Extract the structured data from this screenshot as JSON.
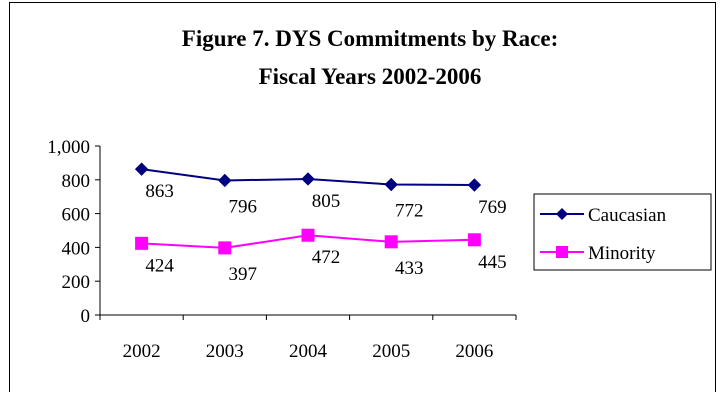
{
  "chart_data": {
    "type": "line",
    "title": [
      "Figure 7.  DYS Commitments by Race:",
      "Fiscal Years 2002-2006"
    ],
    "categories": [
      "2002",
      "2003",
      "2004",
      "2005",
      "2006"
    ],
    "ylim": [
      0,
      1000
    ],
    "yticks": [
      0,
      200,
      400,
      600,
      800,
      1000
    ],
    "ytick_labels": [
      "0",
      "200",
      "400",
      "600",
      "800",
      "1,000"
    ],
    "grid": false,
    "legend_position": "right",
    "series": [
      {
        "name": "Caucasian",
        "values": [
          863,
          796,
          805,
          772,
          769
        ],
        "color": "#000080",
        "marker": "diamond",
        "labels": [
          "863",
          "796",
          "805",
          "772",
          "769"
        ]
      },
      {
        "name": "Minority",
        "values": [
          424,
          397,
          472,
          433,
          445
        ],
        "color": "#ff00ff",
        "marker": "square",
        "labels": [
          "424",
          "397",
          "472",
          "433",
          "445"
        ]
      }
    ]
  }
}
